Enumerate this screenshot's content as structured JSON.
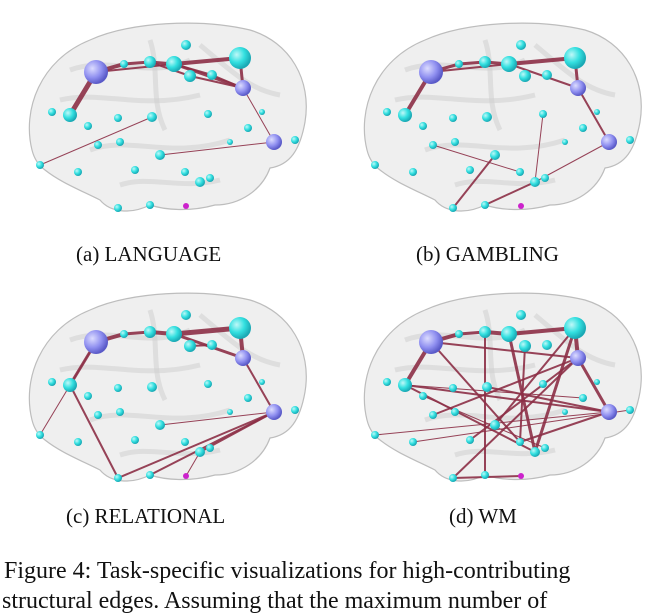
{
  "figure": {
    "panels": [
      {
        "id": "a",
        "label": "(a) LANGUAGE"
      },
      {
        "id": "b",
        "label": "(b) GAMBLING"
      },
      {
        "id": "c",
        "label": "(c) RELATIONAL"
      },
      {
        "id": "d",
        "label": "(d) WM"
      }
    ],
    "caption_line1": "Figure 4: Task-specific visualizations for high-contributing",
    "caption_line2": "structural edges. Assuming that the maximum number of"
  },
  "colors": {
    "node": "#33e0e0",
    "node_shade": "#1aa8b4",
    "hub": "#8f8ff0",
    "edge": "#8c2f46",
    "brain": "#c8c8c8",
    "seed": "#cc22cc"
  }
}
